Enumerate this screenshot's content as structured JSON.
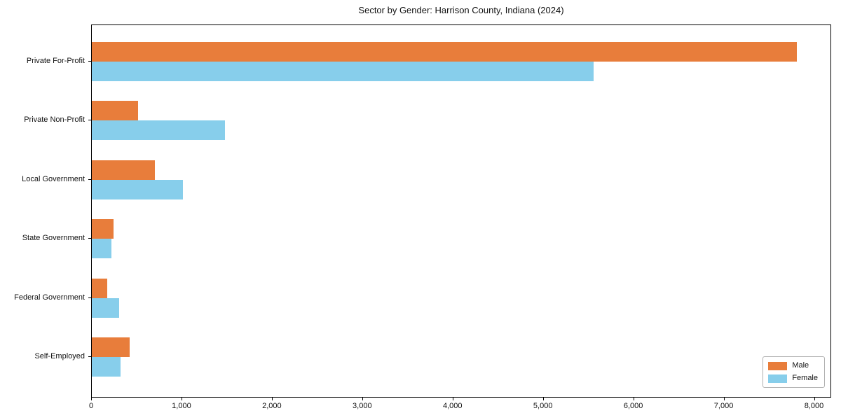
{
  "chart_data": {
    "type": "bar",
    "orientation": "horizontal",
    "title": "Sector by Gender: Harrison County, Indiana (2024)",
    "categories": [
      "Private For-Profit",
      "Private Non-Profit",
      "Local Government",
      "State Government",
      "Federal Government",
      "Self-Employed"
    ],
    "series": [
      {
        "name": "Male",
        "color": "#e87d3b",
        "values": [
          7800,
          510,
          700,
          240,
          170,
          420
        ]
      },
      {
        "name": "Female",
        "color": "#87ceeb",
        "values": [
          5550,
          1470,
          1010,
          220,
          300,
          320
        ]
      }
    ],
    "xlabel": "",
    "ylabel": "",
    "xlim": [
      0,
      8190
    ],
    "xticks": [
      0,
      1000,
      2000,
      3000,
      4000,
      5000,
      6000,
      7000,
      8000
    ],
    "xtick_labels": [
      "0",
      "1,000",
      "2,000",
      "3,000",
      "4,000",
      "5,000",
      "6,000",
      "7,000",
      "8,000"
    ],
    "grid": false,
    "legend": {
      "position": "lower right",
      "entries": [
        "Male",
        "Female"
      ]
    },
    "colors": {
      "male": "#e87d3b",
      "female": "#87ceeb",
      "spine": "#000000",
      "legend_border": "#b0b0b0"
    }
  }
}
